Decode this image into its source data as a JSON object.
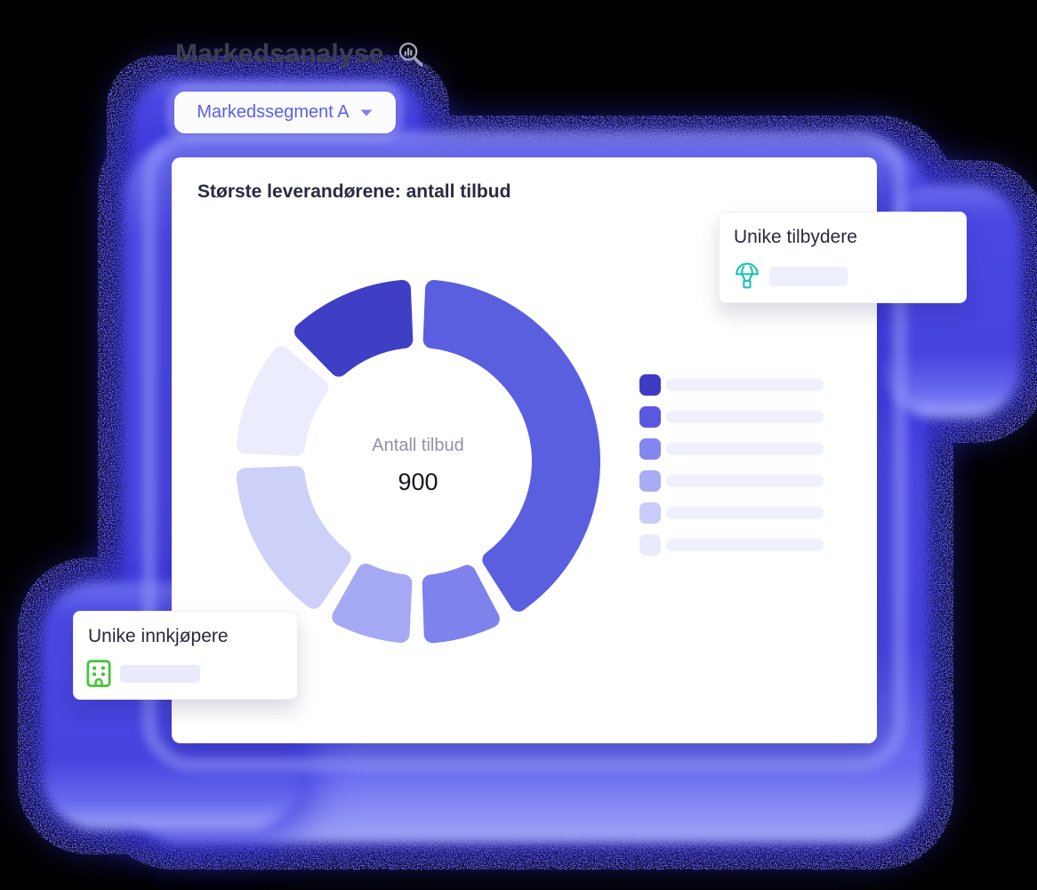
{
  "header": {
    "title": "Markedsanalyse",
    "search_icon": "magnifier-chart-icon"
  },
  "filter": {
    "label": "Markedssegment A",
    "chevron_icon": "chevron-down-icon",
    "text_color": "#5a60e6"
  },
  "main_card": {
    "title": "Største leverandørene: antall tilbud"
  },
  "chart_data": {
    "type": "pie",
    "variant": "donut",
    "title": "Største leverandørene: antall tilbud",
    "center_label": "Antall tilbud",
    "center_value": "900",
    "total": 900,
    "segments": [
      {
        "color": "#5a5fe0",
        "value": 394
      },
      {
        "color": "#7d82ec",
        "value": 70
      },
      {
        "color": "#a5a9f3",
        "value": 72
      },
      {
        "color": "#cdd1f8",
        "value": 146
      },
      {
        "color": "#ebedfc",
        "value": 104
      },
      {
        "color": "#3e3fc4",
        "value": 114
      }
    ],
    "start_angle_deg": 0,
    "gap_deg": 4.75,
    "corner_radius": 10,
    "legend_position": "right",
    "legend": [
      {
        "color": "#3d3bc3"
      },
      {
        "color": "#5a58e0"
      },
      {
        "color": "#8286ee"
      },
      {
        "color": "#a9acf4"
      },
      {
        "color": "#c9ccf8"
      },
      {
        "color": "#e9ebfc"
      }
    ],
    "legend_bar_color": "#eef0fc"
  },
  "floating_cards": {
    "suppliers": {
      "title": "Unike tilbydere",
      "icon": "parachute-box-icon",
      "icon_color": "#1cc3b4",
      "placeholder_color": "#edeffc"
    },
    "buyers": {
      "title": "Unike innkjøpere",
      "icon": "building-icon",
      "icon_color": "#44c436",
      "placeholder_color": "#e9ebfa"
    }
  },
  "colors": {
    "background": "#000000",
    "glow_blue": "#4a48e2",
    "glow_rim": "#9a9df6"
  }
}
